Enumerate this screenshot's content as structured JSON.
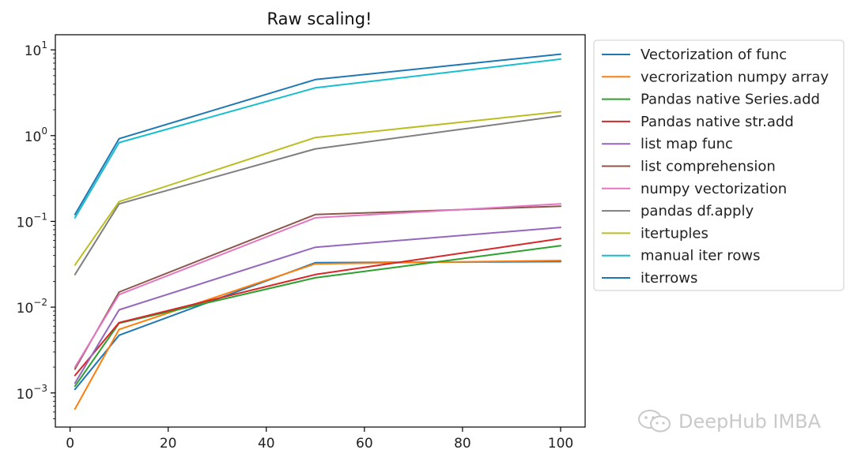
{
  "chart_data": {
    "type": "line",
    "title": "Raw scaling!",
    "xlabel": "",
    "ylabel": "",
    "yscale": "log",
    "xlim": [
      -3,
      105
    ],
    "ylim": [
      0.0004,
      15
    ],
    "x": [
      1,
      10,
      50,
      100
    ],
    "xticks": [
      0,
      20,
      40,
      60,
      80,
      100
    ],
    "xtick_labels": [
      "0",
      "20",
      "40",
      "60",
      "80",
      "100"
    ],
    "yticks": [
      0.001,
      0.01,
      0.1,
      1,
      10
    ],
    "ytick_labels": [
      {
        "base": "10",
        "exp": "−3"
      },
      {
        "base": "10",
        "exp": "−2"
      },
      {
        "base": "10",
        "exp": "−1"
      },
      {
        "base": "10",
        "exp": "0"
      },
      {
        "base": "10",
        "exp": "1"
      }
    ],
    "legend_position": "outside-right",
    "series": [
      {
        "name": "Vectorization of func",
        "color": "#1f77b4",
        "values": [
          0.0011,
          0.0047,
          0.033,
          0.034
        ]
      },
      {
        "name": "vecrorization numpy array",
        "color": "#ff7f0e",
        "values": [
          0.00065,
          0.0055,
          0.032,
          0.035
        ]
      },
      {
        "name": "Pandas native Series.add",
        "color": "#2ca02c",
        "values": [
          0.0012,
          0.0065,
          0.022,
          0.052
        ]
      },
      {
        "name": "Pandas native str.add",
        "color": "#d62728",
        "values": [
          0.0016,
          0.0066,
          0.024,
          0.063
        ]
      },
      {
        "name": "list map func",
        "color": "#9467bd",
        "values": [
          0.0013,
          0.0093,
          0.05,
          0.085
        ]
      },
      {
        "name": "list comprehension",
        "color": "#8c564b",
        "values": [
          0.0019,
          0.015,
          0.12,
          0.15
        ]
      },
      {
        "name": "numpy vectorization",
        "color": "#e377c2",
        "values": [
          0.002,
          0.014,
          0.11,
          0.16
        ]
      },
      {
        "name": "pandas df.apply",
        "color": "#7f7f7f",
        "values": [
          0.024,
          0.16,
          0.7,
          1.7
        ]
      },
      {
        "name": "itertuples",
        "color": "#bcbd22",
        "values": [
          0.031,
          0.17,
          0.95,
          1.9
        ]
      },
      {
        "name": "manual iter rows",
        "color": "#17becf",
        "values": [
          0.11,
          0.83,
          3.6,
          7.8
        ]
      },
      {
        "name": "iterrows",
        "color": "#1f77b4",
        "values": [
          0.12,
          0.92,
          4.5,
          8.9
        ]
      }
    ]
  },
  "watermark": {
    "text": "DeepHub IMBA",
    "icon": "wechat-icon"
  }
}
